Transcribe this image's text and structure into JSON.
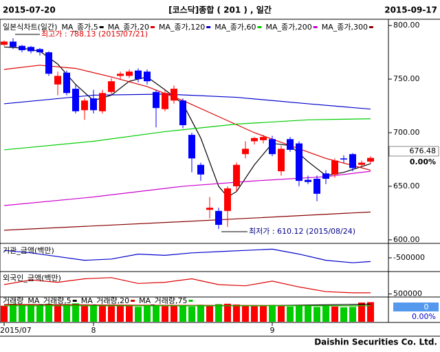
{
  "header": {
    "left_date": "2015-07-20",
    "title": "[코스닥]종합 ( 201 ) , 일간",
    "right_date": "2015-09-17"
  },
  "footer": {
    "company": "Daishin Securities Co. Ltd."
  },
  "chart_data": [
    {
      "type": "candlestick",
      "title": "일본식차트(일간)",
      "open": [
        782,
        785,
        781,
        780,
        778,
        775,
        745,
        756,
        741,
        721,
        732,
        720,
        738,
        753,
        753,
        758,
        757,
        738,
        722,
        730,
        730,
        698,
        670,
        628,
        627,
        627,
        650,
        680,
        692,
        693,
        694,
        664,
        694,
        690,
        656,
        657,
        662,
        661,
        676,
        680,
        670,
        673
      ],
      "high": [
        786,
        788.13,
        782,
        781,
        779,
        776,
        757,
        758,
        745,
        732,
        740,
        740,
        751,
        757,
        759,
        760,
        759,
        740,
        740,
        744,
        732,
        700,
        672,
        640,
        630,
        650,
        672,
        692,
        696,
        698,
        697,
        688,
        696,
        692,
        660,
        660,
        665,
        676,
        679,
        681,
        674,
        678
      ],
      "low": [
        781,
        778,
        775,
        774,
        772,
        753,
        735,
        735,
        718,
        712,
        718,
        718,
        735,
        750,
        751,
        747,
        745,
        705,
        720,
        727,
        704,
        663,
        655,
        620,
        610.12,
        612,
        645,
        676,
        689,
        690,
        678,
        660,
        682,
        650,
        652,
        636,
        652,
        658,
        672,
        664,
        667,
        671
      ],
      "close": [
        785,
        780,
        777,
        776,
        775,
        755,
        753,
        737,
        720,
        730,
        721,
        737,
        748,
        755,
        757,
        750,
        748,
        723,
        737,
        741,
        707,
        676,
        661,
        630,
        614,
        648,
        670,
        685,
        695,
        696,
        680,
        685,
        684,
        655,
        654,
        643,
        657,
        674,
        675,
        667,
        672,
        676.48
      ],
      "up_color": "#ff0000",
      "down_color": "#0000ff",
      "change": "0.00%",
      "annotations": [
        "최고가 : 788.13 (2015/07/21)",
        "최저가 : 610.12 (2015/08/24)"
      ],
      "series": [
        {
          "name": "MA_종가,5",
          "color": "#000000",
          "x": [
            0,
            2,
            4,
            6,
            8,
            10,
            12,
            14,
            16,
            18,
            20,
            22,
            24,
            25,
            26,
            28,
            30,
            32,
            34,
            36,
            38,
            41
          ],
          "values": [
            780,
            779,
            776,
            764,
            745,
            730,
            735,
            748,
            752,
            740,
            727,
            695,
            650,
            640,
            645,
            670,
            690,
            688,
            673,
            660,
            663,
            671
          ]
        },
        {
          "name": "MA_종가,20",
          "color": "#dd0000",
          "x": [
            0,
            4,
            8,
            12,
            16,
            20,
            24,
            28,
            32,
            36,
            41
          ],
          "values": [
            759,
            763,
            760,
            752,
            743,
            730,
            715,
            700,
            688,
            676,
            665
          ]
        },
        {
          "name": "MA_종가,120",
          "color": "#0000cc",
          "x": [
            0,
            10,
            18,
            26,
            34,
            41
          ],
          "values": [
            727,
            735,
            736,
            733,
            727,
            722
          ]
        },
        {
          "name": "MA_종가,60",
          "color": "#00cc00",
          "x": [
            0,
            10,
            18,
            26,
            34,
            41
          ],
          "values": [
            684,
            692,
            701,
            708,
            712,
            713
          ]
        },
        {
          "name": "MA_종가,200",
          "color": "#cc00cc",
          "x": [
            0,
            10,
            20,
            28,
            36,
            41
          ],
          "values": [
            632,
            640,
            650,
            655,
            659,
            664
          ]
        },
        {
          "name": "MA_종가,300",
          "color": "#880000",
          "x": [
            0,
            20,
            41
          ],
          "values": [
            609,
            617,
            626
          ]
        }
      ],
      "ylim": [
        598,
        802
      ],
      "yticks": [
        {
          "value": 600,
          "label": "600.00"
        },
        {
          "value": 650,
          "label": "650.00"
        },
        {
          "value": 700,
          "label": "700.00"
        },
        {
          "value": 750,
          "label": "750.00"
        },
        {
          "value": 800,
          "label": "800.00"
        }
      ]
    },
    {
      "type": "line",
      "title": "기관_금액(백만)",
      "series": [
        {
          "color": "#0000cc",
          "x": [
            0,
            3,
            6,
            9,
            12,
            15,
            18,
            21,
            24,
            27,
            30,
            33,
            36,
            39,
            41
          ],
          "values": [
            -200000,
            -300000,
            -450000,
            -600000,
            -550000,
            -350000,
            -400000,
            -300000,
            -250000,
            -200000,
            -150000,
            -350000,
            -600000,
            -700000,
            -650000
          ]
        }
      ],
      "ylim": [
        -1000000,
        0
      ],
      "yticks": [
        -500000
      ]
    },
    {
      "type": "line",
      "title": "외국인_금액(백만)",
      "series": [
        {
          "color": "#dd0000",
          "x": [
            0,
            3,
            6,
            9,
            12,
            15,
            18,
            21,
            24,
            27,
            30,
            33,
            36,
            39,
            41
          ],
          "values": [
            900000,
            1100000,
            1000000,
            1150000,
            1200000,
            950000,
            1000000,
            1150000,
            900000,
            850000,
            1050000,
            800000,
            600000,
            550000,
            550000
          ]
        }
      ],
      "ylim": [
        400000,
        1400000
      ],
      "yticks": [
        500000
      ]
    },
    {
      "type": "bar",
      "title": "거래량",
      "values": [
        80,
        90,
        85,
        88,
        82,
        90,
        85,
        88,
        92,
        80,
        86,
        84,
        78,
        80,
        82,
        75,
        80,
        84,
        78,
        82,
        80,
        76,
        85,
        82,
        88,
        90,
        86,
        80,
        78,
        82,
        84,
        80,
        76,
        82,
        78,
        74,
        80,
        76,
        72,
        74,
        96,
        98
      ],
      "up_color": "#ff0000",
      "down_color": "#00cc00",
      "current_value": 0,
      "current_change": "0.00%",
      "series": [
        {
          "name": "MA_거래량,5",
          "color": "#000000",
          "x": [
            0,
            10,
            20,
            30,
            41
          ],
          "values": [
            86,
            84,
            80,
            81,
            88
          ]
        },
        {
          "name": "MA_거래량,20",
          "color": "#dd0000",
          "x": [
            0,
            10,
            20,
            30,
            41
          ],
          "values": [
            85,
            84,
            82,
            81,
            80
          ]
        },
        {
          "name": "MA_거래량,75",
          "color": "#00cc00",
          "x": [
            0,
            10,
            20,
            30,
            41
          ],
          "values": [
            80,
            80,
            80,
            80,
            80
          ]
        }
      ],
      "ylim": [
        0,
        110
      ],
      "xticks": [
        {
          "value": 0,
          "label": "2015/07"
        },
        {
          "value": 10,
          "label": "8"
        },
        {
          "value": 30,
          "label": "9"
        }
      ]
    }
  ]
}
